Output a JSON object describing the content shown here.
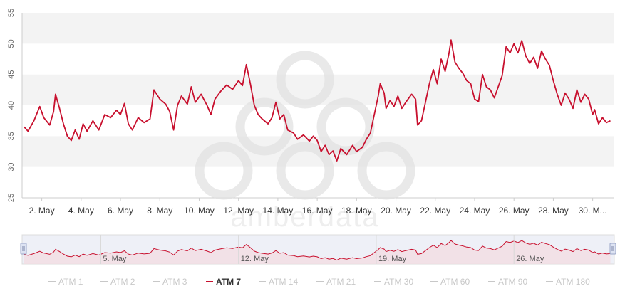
{
  "chart_data": {
    "type": "line",
    "title": "",
    "xlabel": "",
    "ylabel": "",
    "ylim": [
      25,
      55
    ],
    "y_ticks": [
      "25",
      "30",
      "35",
      "40",
      "45",
      "50",
      "55"
    ],
    "x_ticks": [
      "2. May",
      "4. May",
      "6. May",
      "8. May",
      "10. May",
      "12. May",
      "14. May",
      "16. May",
      "18. May",
      "20. May",
      "22. May",
      "24. May",
      "26. May",
      "28. May",
      "30. M..."
    ],
    "x_range_days": [
      1,
      31.1
    ],
    "grid": "horizontal alternating bands",
    "series": [
      {
        "name": "ATM 7",
        "color": "#c8102e",
        "points": [
          [
            1.1,
            36.5
          ],
          [
            1.3,
            35.8
          ],
          [
            1.6,
            37.5
          ],
          [
            1.9,
            39.8
          ],
          [
            2.1,
            38.0
          ],
          [
            2.4,
            36.8
          ],
          [
            2.6,
            39.0
          ],
          [
            2.7,
            41.8
          ],
          [
            2.9,
            39.5
          ],
          [
            3.1,
            37.0
          ],
          [
            3.3,
            35.0
          ],
          [
            3.5,
            34.3
          ],
          [
            3.7,
            36.0
          ],
          [
            3.9,
            34.5
          ],
          [
            4.1,
            37.0
          ],
          [
            4.3,
            35.8
          ],
          [
            4.6,
            37.5
          ],
          [
            4.9,
            36.0
          ],
          [
            5.2,
            38.5
          ],
          [
            5.5,
            38.0
          ],
          [
            5.8,
            39.2
          ],
          [
            6.0,
            38.5
          ],
          [
            6.2,
            40.3
          ],
          [
            6.4,
            37.0
          ],
          [
            6.6,
            36.0
          ],
          [
            6.9,
            38.0
          ],
          [
            7.2,
            37.2
          ],
          [
            7.5,
            37.8
          ],
          [
            7.7,
            42.5
          ],
          [
            8.0,
            41.0
          ],
          [
            8.3,
            40.2
          ],
          [
            8.5,
            39.0
          ],
          [
            8.7,
            36.0
          ],
          [
            8.9,
            40.0
          ],
          [
            9.1,
            41.5
          ],
          [
            9.4,
            40.2
          ],
          [
            9.6,
            43.0
          ],
          [
            9.8,
            40.5
          ],
          [
            10.1,
            41.8
          ],
          [
            10.4,
            40.0
          ],
          [
            10.6,
            38.5
          ],
          [
            10.8,
            41.0
          ],
          [
            11.1,
            42.3
          ],
          [
            11.4,
            43.3
          ],
          [
            11.7,
            42.6
          ],
          [
            12.0,
            44.0
          ],
          [
            12.2,
            43.2
          ],
          [
            12.4,
            46.6
          ],
          [
            12.6,
            43.5
          ],
          [
            12.8,
            40.0
          ],
          [
            13.0,
            38.5
          ],
          [
            13.2,
            37.8
          ],
          [
            13.5,
            37.0
          ],
          [
            13.7,
            38.0
          ],
          [
            13.9,
            40.5
          ],
          [
            14.1,
            37.8
          ],
          [
            14.3,
            38.5
          ],
          [
            14.5,
            36.0
          ],
          [
            14.8,
            35.5
          ],
          [
            15.0,
            34.5
          ],
          [
            15.3,
            35.2
          ],
          [
            15.6,
            34.2
          ],
          [
            15.8,
            35.0
          ],
          [
            16.0,
            34.3
          ],
          [
            16.2,
            32.5
          ],
          [
            16.4,
            33.5
          ],
          [
            16.6,
            32.0
          ],
          [
            16.8,
            32.6
          ],
          [
            17.0,
            31.0
          ],
          [
            17.2,
            33.0
          ],
          [
            17.5,
            32.0
          ],
          [
            17.8,
            33.5
          ],
          [
            18.0,
            32.5
          ],
          [
            18.3,
            33.2
          ],
          [
            18.5,
            34.5
          ],
          [
            18.7,
            35.5
          ],
          [
            18.9,
            38.5
          ],
          [
            19.1,
            41.5
          ],
          [
            19.2,
            43.5
          ],
          [
            19.4,
            42.0
          ],
          [
            19.5,
            39.5
          ],
          [
            19.7,
            40.8
          ],
          [
            19.9,
            39.8
          ],
          [
            20.1,
            41.5
          ],
          [
            20.3,
            39.5
          ],
          [
            20.5,
            40.5
          ],
          [
            20.8,
            41.8
          ],
          [
            21.0,
            41.0
          ],
          [
            21.1,
            36.8
          ],
          [
            21.3,
            37.5
          ],
          [
            21.5,
            40.5
          ],
          [
            21.7,
            43.5
          ],
          [
            21.9,
            45.8
          ],
          [
            22.1,
            43.5
          ],
          [
            22.3,
            47.5
          ],
          [
            22.5,
            45.5
          ],
          [
            22.7,
            48.5
          ],
          [
            22.8,
            50.6
          ],
          [
            23.0,
            47.0
          ],
          [
            23.2,
            46.0
          ],
          [
            23.4,
            45.2
          ],
          [
            23.6,
            44.0
          ],
          [
            23.8,
            43.5
          ],
          [
            24.0,
            41.0
          ],
          [
            24.2,
            40.6
          ],
          [
            24.4,
            45.0
          ],
          [
            24.6,
            43.0
          ],
          [
            24.8,
            42.5
          ],
          [
            25.0,
            41.2
          ],
          [
            25.2,
            43.0
          ],
          [
            25.4,
            44.8
          ],
          [
            25.6,
            49.5
          ],
          [
            25.8,
            48.5
          ],
          [
            26.0,
            50.0
          ],
          [
            26.2,
            48.5
          ],
          [
            26.4,
            50.5
          ],
          [
            26.6,
            48.0
          ],
          [
            26.8,
            46.8
          ],
          [
            27.0,
            47.8
          ],
          [
            27.2,
            46.0
          ],
          [
            27.4,
            48.8
          ],
          [
            27.6,
            47.5
          ],
          [
            27.8,
            46.5
          ],
          [
            28.0,
            44.0
          ],
          [
            28.2,
            41.8
          ],
          [
            28.4,
            40.0
          ],
          [
            28.6,
            42.0
          ],
          [
            28.8,
            41.0
          ],
          [
            29.0,
            39.5
          ],
          [
            29.2,
            42.5
          ],
          [
            29.4,
            40.5
          ],
          [
            29.6,
            41.8
          ],
          [
            29.8,
            41.0
          ],
          [
            30.0,
            38.5
          ],
          [
            30.1,
            39.3
          ],
          [
            30.3,
            37.0
          ],
          [
            30.5,
            38.0
          ],
          [
            30.7,
            37.2
          ],
          [
            30.9,
            37.5
          ]
        ]
      }
    ],
    "navigator": {
      "ticks": [
        "5. May",
        "12. May",
        "19. May",
        "26. May"
      ]
    },
    "legend": {
      "placement": "bottom",
      "items": [
        {
          "label": "ATM 1",
          "active": false
        },
        {
          "label": "ATM 2",
          "active": false
        },
        {
          "label": "ATM 3",
          "active": false
        },
        {
          "label": "ATM 7",
          "active": true
        },
        {
          "label": "ATM 14",
          "active": false
        },
        {
          "label": "ATM 21",
          "active": false
        },
        {
          "label": "ATM 30",
          "active": false
        },
        {
          "label": "ATM 60",
          "active": false
        },
        {
          "label": "ATM 90",
          "active": false
        },
        {
          "label": "ATM 180",
          "active": false
        }
      ]
    }
  },
  "watermark": {
    "text": "amberdata"
  }
}
